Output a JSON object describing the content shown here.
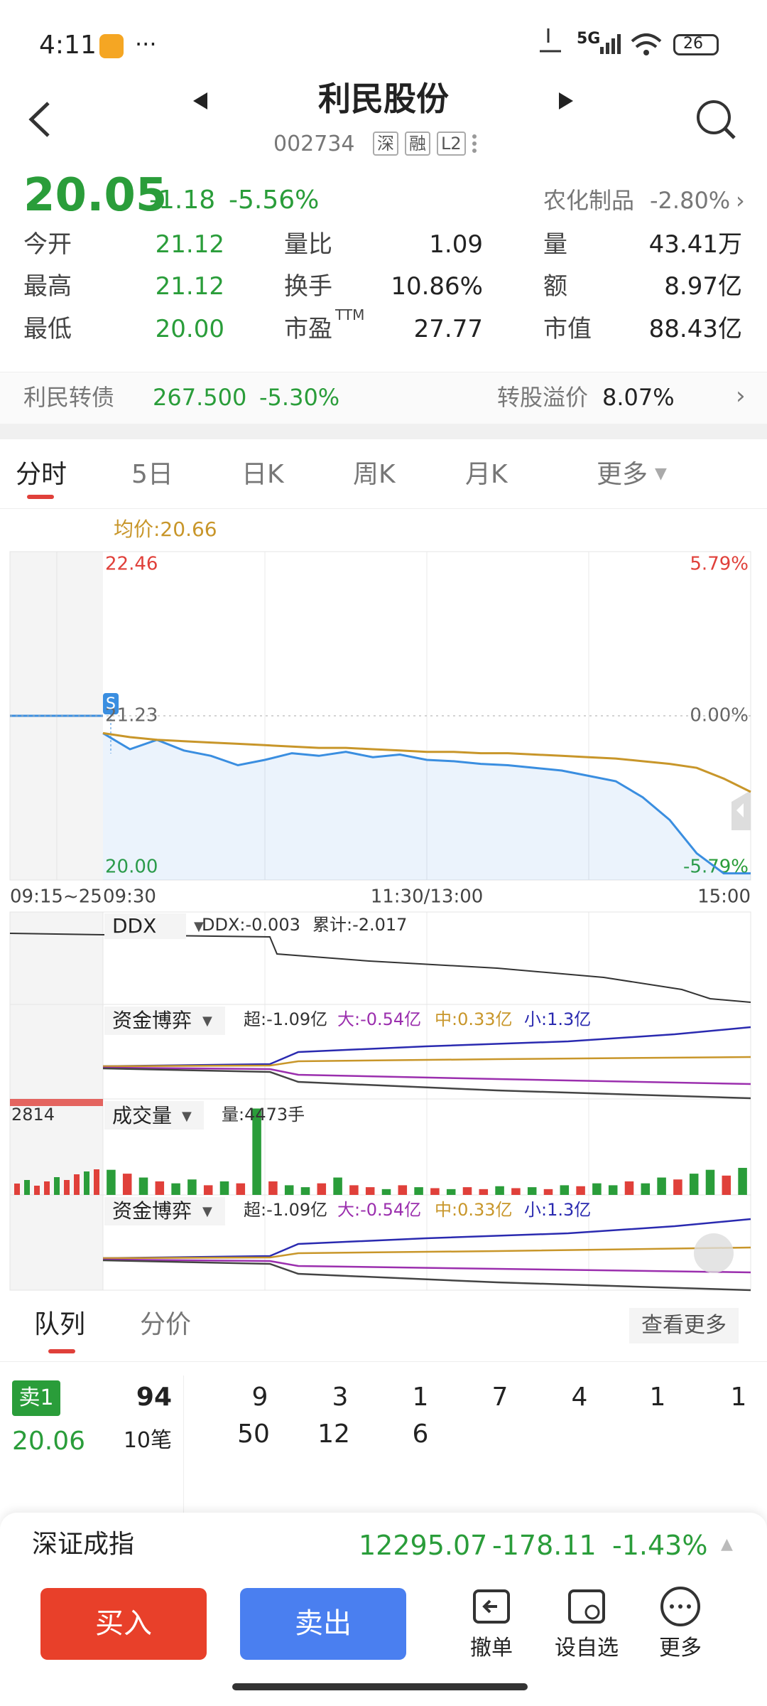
{
  "status": {
    "time": "4:11",
    "network": "5G",
    "battery": "26"
  },
  "header": {
    "name": "利民股份",
    "code": "002734",
    "badges": [
      "深",
      "融",
      "L2"
    ]
  },
  "quote": {
    "price": "20.05",
    "change": "-1.18",
    "change_pct": "-5.56%",
    "sector": "农化制品",
    "sector_pct": "-2.80%",
    "stats": [
      [
        {
          "label": "今开",
          "value": "21.12"
        },
        {
          "label": "量比",
          "value": "1.09"
        },
        {
          "label": "量",
          "value": "43.41万"
        }
      ],
      [
        {
          "label": "最高",
          "value": "21.12"
        },
        {
          "label": "换手",
          "value": "10.86%"
        },
        {
          "label": "额",
          "value": "8.97亿"
        }
      ],
      [
        {
          "label": "最低",
          "value": "20.00"
        },
        {
          "label": "市盈",
          "sup": "TTM",
          "value": "27.77"
        },
        {
          "label": "市值",
          "value": "88.43亿"
        }
      ]
    ]
  },
  "bond": {
    "name": "利民转债",
    "price": "267.500",
    "change_pct": "-5.30%",
    "premium_label": "转股溢价",
    "premium": "8.07%"
  },
  "tabs": [
    "分时",
    "5日",
    "日K",
    "周K",
    "月K",
    "更多"
  ],
  "chart_data": [
    {
      "type": "line",
      "legend_text": "均价:20.66",
      "annotation": "S",
      "premarket_label": "09:15~25",
      "x": [
        0,
        10,
        20,
        30,
        40,
        50,
        60,
        70,
        80,
        90,
        100,
        110,
        120,
        130,
        140,
        150,
        160,
        170,
        180,
        190,
        200,
        210,
        220,
        230,
        240
      ],
      "xlim": [
        0,
        240
      ],
      "xticks": [
        {
          "value": 0,
          "label": "09:30"
        },
        {
          "value": 120,
          "label": "11:30/13:00"
        },
        {
          "value": 240,
          "label": "15:00"
        }
      ],
      "ylim": [
        20,
        22.46
      ],
      "yticks": [
        22.46,
        21.23,
        {
          "value": 20,
          "label": "20.00"
        }
      ],
      "y2lim": [
        -5.79,
        5.79
      ],
      "y2ticks": [
        {
          "value": 5.79,
          "label": "5.79%"
        },
        {
          "value": 0,
          "label": "0.00%"
        },
        {
          "value": -5.79,
          "label": "-5.79%"
        }
      ],
      "grid": true,
      "series": [
        {
          "name": "分时",
          "color": "#3a8ee0",
          "values": [
            21.1,
            20.98,
            21.05,
            20.97,
            20.93,
            20.86,
            20.9,
            20.95,
            20.93,
            20.96,
            20.92,
            20.94,
            20.9,
            20.89,
            20.87,
            20.86,
            20.84,
            20.82,
            20.78,
            20.74,
            20.62,
            20.45,
            20.2,
            20.05,
            20.05
          ]
        },
        {
          "name": "均价",
          "color": "#c8962a",
          "values": [
            21.1,
            21.07,
            21.05,
            21.04,
            21.03,
            21.02,
            21.01,
            21.0,
            20.99,
            20.99,
            20.98,
            20.97,
            20.96,
            20.96,
            20.95,
            20.95,
            20.94,
            20.93,
            20.92,
            20.91,
            20.89,
            20.87,
            20.84,
            20.76,
            20.66
          ]
        }
      ]
    },
    {
      "type": "bar",
      "title": "成交量",
      "legend_text": "量:4473手",
      "premarket_label": "2814",
      "x": [
        3,
        9,
        15,
        21,
        27,
        33,
        39,
        45,
        51,
        57,
        63,
        69,
        75,
        81,
        87,
        93,
        99,
        105,
        111,
        117,
        123,
        129,
        135,
        141,
        147,
        153,
        159,
        165,
        171,
        177,
        183,
        189,
        195,
        201,
        207,
        213,
        219,
        225,
        231,
        237
      ],
      "xlim": [
        0,
        240
      ],
      "ylim": [
        0,
        4600
      ],
      "values": [
        1300,
        1100,
        900,
        700,
        600,
        800,
        500,
        700,
        600,
        4473,
        700,
        500,
        400,
        600,
        900,
        500,
        400,
        300,
        500,
        400,
        350,
        300,
        400,
        300,
        450,
        350,
        400,
        300,
        500,
        450,
        600,
        500,
        700,
        600,
        900,
        800,
        1100,
        1300,
        1000,
        1400
      ],
      "colors": [
        "#2a9d3a",
        "#e0403a",
        "#2a9d3a",
        "#e0403a",
        "#2a9d3a",
        "#2a9d3a",
        "#e0403a",
        "#2a9d3a",
        "#e0403a",
        "#2a9d3a",
        "#e0403a",
        "#2a9d3a",
        "#2a9d3a",
        "#e0403a",
        "#2a9d3a",
        "#e0403a",
        "#e0403a",
        "#2a9d3a",
        "#e0403a",
        "#2a9d3a",
        "#e0403a",
        "#2a9d3a",
        "#e0403a",
        "#e0403a",
        "#2a9d3a",
        "#e0403a",
        "#2a9d3a",
        "#e0403a",
        "#2a9d3a",
        "#e0403a",
        "#2a9d3a",
        "#2a9d3a",
        "#e0403a",
        "#2a9d3a",
        "#2a9d3a",
        "#e0403a",
        "#2a9d3a",
        "#2a9d3a",
        "#e0403a",
        "#2a9d3a"
      ]
    }
  ],
  "indicators": {
    "ddx": {
      "name": "DDX",
      "value": "DDX:-0.003",
      "total": "累计:-2.017"
    },
    "fund_1": {
      "name": "资金博弈",
      "super": "超:-1.09亿",
      "large": "大:-0.54亿",
      "medium": "中:0.33亿",
      "small": "小:1.3亿"
    },
    "fund_2": {
      "name": "资金博弈",
      "super": "超:-1.09亿",
      "large": "大:-0.54亿",
      "medium": "中:0.33亿",
      "small": "小:1.3亿"
    }
  },
  "orderbook": {
    "tabs": [
      "队列",
      "分价"
    ],
    "more": "查看更多",
    "side": "卖1",
    "price": "20.06",
    "volume": "94",
    "count": "10笔",
    "queue": [
      [
        "9",
        "3",
        "1",
        "7",
        "4",
        "1",
        "1"
      ],
      [
        "50",
        "12",
        "6"
      ]
    ]
  },
  "footer": {
    "index_name": "深证成指",
    "index_value": "12295.07",
    "index_change": "-178.11",
    "index_pct": "-1.43%",
    "buy": "买入",
    "sell": "卖出",
    "actions": [
      "撤单",
      "设自选",
      "更多"
    ]
  }
}
